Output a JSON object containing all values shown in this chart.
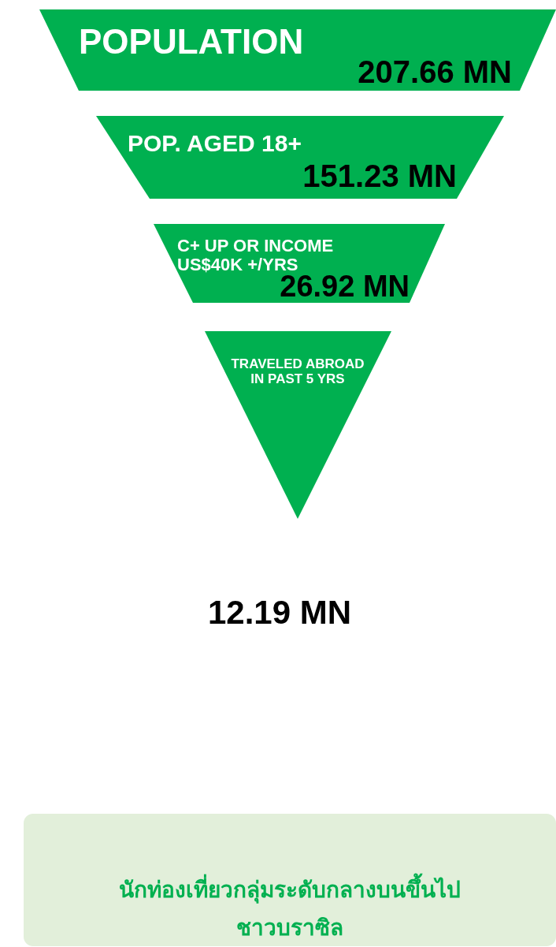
{
  "chart_data": {
    "type": "other",
    "categories": [
      "POPULATION",
      "POP. AGED 18+",
      "C+ UP OR INCOME\nUS$40K +/YRS",
      "TRAVELED ABROAD\nIN PAST 5 YRS"
    ],
    "values": [
      207.66,
      151.23,
      26.92,
      12.19
    ],
    "value_labels": [
      "207.66 MN",
      "151.23 MN",
      "26.92  MN",
      "12.19 MN"
    ],
    "color": "#00b050",
    "annotations": [
      "นักท่องเที่ยวกลุ่มระดับกลางบนขึ้นไป\nชาวบราซิล"
    ]
  }
}
